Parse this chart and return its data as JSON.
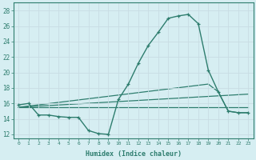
{
  "xlabel": "Humidex (Indice chaleur)",
  "bg_color": "#d6eef2",
  "grid_color": "#c8dde3",
  "line_color": "#2e7d6e",
  "xlim": [
    -0.5,
    23.5
  ],
  "ylim": [
    11.5,
    29.0
  ],
  "xticks": [
    0,
    1,
    2,
    3,
    4,
    5,
    6,
    7,
    8,
    9,
    10,
    11,
    12,
    13,
    14,
    15,
    16,
    17,
    18,
    19,
    20,
    21,
    22,
    23
  ],
  "yticks": [
    12,
    14,
    16,
    18,
    20,
    22,
    24,
    26,
    28
  ],
  "line1_x": [
    0,
    1,
    2,
    3,
    4,
    5,
    6,
    7,
    8,
    9,
    10,
    11,
    12,
    13,
    14,
    15,
    16,
    17,
    18,
    19,
    20,
    21,
    22,
    23
  ],
  "line1_y": [
    15.8,
    16.0,
    14.5,
    14.5,
    14.3,
    14.2,
    14.2,
    12.5,
    12.1,
    12.0,
    16.5,
    18.5,
    21.2,
    23.5,
    25.2,
    27.0,
    27.3,
    27.5,
    26.3,
    20.3,
    17.5,
    15.0,
    14.8,
    14.8
  ],
  "line2_x": [
    0,
    19,
    20,
    21,
    22,
    23
  ],
  "line2_y": [
    15.5,
    18.5,
    17.5,
    15.0,
    14.8,
    14.8
  ],
  "line3_x": [
    0,
    23
  ],
  "line3_y": [
    15.5,
    17.2
  ],
  "line4_x": [
    0,
    23
  ],
  "line4_y": [
    15.5,
    15.5
  ]
}
